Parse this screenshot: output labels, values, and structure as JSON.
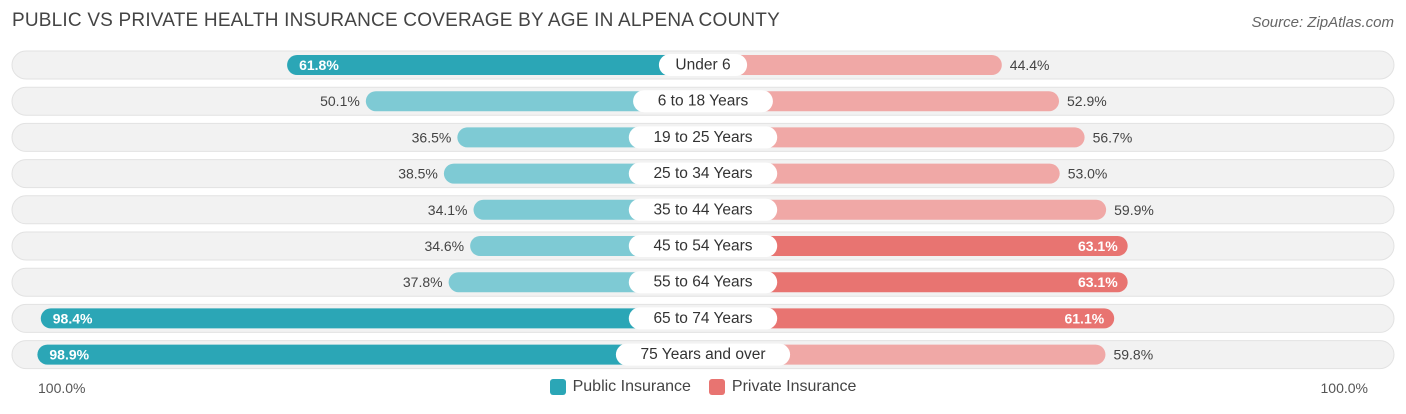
{
  "header": {
    "title": "PUBLIC VS PRIVATE HEALTH INSURANCE COVERAGE BY AGE IN ALPENA COUNTY",
    "source": "Source: ZipAtlas.com"
  },
  "axis": {
    "left_label": "100.0%",
    "right_label": "100.0%"
  },
  "legend": {
    "public_label": "Public Insurance",
    "private_label": "Private Insurance"
  },
  "colors": {
    "public": "#2ba6b6",
    "public_light": "#7ecad4",
    "private": "#e87471",
    "private_light": "#f0a8a6",
    "row_bg": "#f2f2f2"
  },
  "chart_data": {
    "type": "bar",
    "orientation": "horizontal-diverging",
    "title": "PUBLIC VS PRIVATE HEALTH INSURANCE COVERAGE BY AGE IN ALPENA COUNTY",
    "categories": [
      "Under 6",
      "6 to 18 Years",
      "19 to 25 Years",
      "25 to 34 Years",
      "35 to 44 Years",
      "45 to 54 Years",
      "55 to 64 Years",
      "65 to 74 Years",
      "75 Years and over"
    ],
    "series": [
      {
        "name": "Public Insurance",
        "values": [
          61.8,
          50.1,
          36.5,
          38.5,
          34.1,
          34.6,
          37.8,
          98.4,
          98.9
        ],
        "labels": [
          "61.8%",
          "50.1%",
          "36.5%",
          "38.5%",
          "34.1%",
          "34.6%",
          "37.8%",
          "98.4%",
          "98.9%"
        ]
      },
      {
        "name": "Private Insurance",
        "values": [
          44.4,
          52.9,
          56.7,
          53.0,
          59.9,
          63.1,
          63.1,
          61.1,
          59.8
        ],
        "labels": [
          "44.4%",
          "52.9%",
          "56.7%",
          "53.0%",
          "59.9%",
          "63.1%",
          "63.1%",
          "61.1%",
          "59.8%"
        ]
      }
    ],
    "xlim": [
      -100,
      100
    ],
    "legend_position": "bottom-center"
  }
}
